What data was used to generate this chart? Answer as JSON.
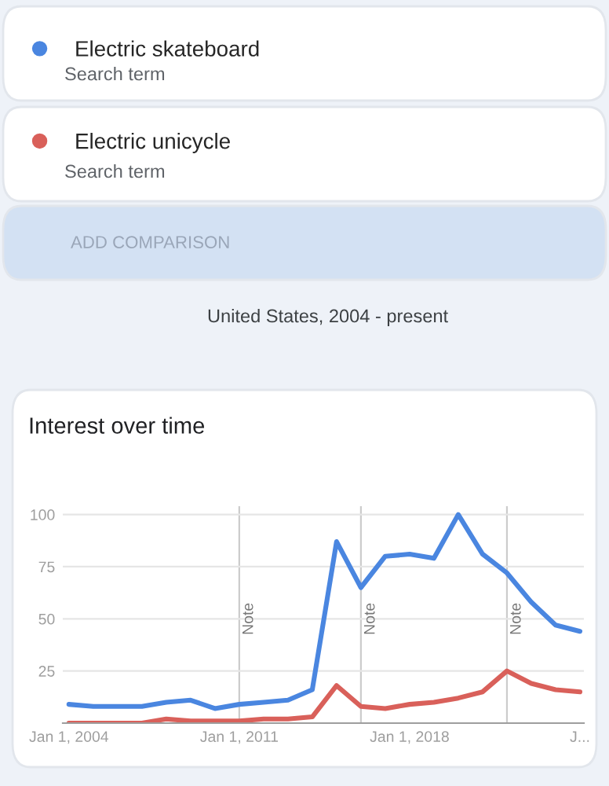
{
  "chart_data": {
    "type": "line",
    "title": "Interest over time",
    "annotations": [
      "Search term",
      "Search term",
      "ADD COMPARISON",
      "United States, 2004 - present"
    ],
    "x": [
      "2004",
      "2005",
      "2006",
      "2007",
      "2008",
      "2009",
      "2010",
      "2011",
      "2012",
      "2013",
      "2014",
      "2015",
      "2016",
      "2017",
      "2018",
      "2019",
      "2020",
      "2021",
      "2022",
      "2023",
      "2024",
      "2025"
    ],
    "series": [
      {
        "name": "Electric skateboard",
        "color": "#4a86e0",
        "values": [
          9,
          8,
          8,
          8,
          10,
          11,
          7,
          9,
          10,
          11,
          16,
          87,
          65,
          80,
          81,
          79,
          100,
          81,
          72,
          58,
          47,
          44
        ]
      },
      {
        "name": "Electric unicycle",
        "color": "#d9605a",
        "values": [
          0,
          0,
          0,
          0,
          2,
          1,
          1,
          1,
          2,
          2,
          3,
          18,
          8,
          7,
          9,
          10,
          12,
          15,
          25,
          19,
          16,
          15
        ]
      }
    ],
    "xlim": [
      "2003-10",
      "2025-03"
    ],
    "xticks": [
      {
        "value": "2004",
        "label": "Jan 1, 2004"
      },
      {
        "value": "2011",
        "label": "Jan 1, 2011"
      },
      {
        "value": "2018",
        "label": "Jan 1, 2018"
      },
      {
        "value": "2025",
        "label": "J..."
      }
    ],
    "ylim": [
      0,
      104
    ],
    "yticks": [
      {
        "value": 0,
        "label": null
      },
      25,
      50,
      75,
      100
    ],
    "ref_lines": [
      {
        "axis": "x",
        "value": "2011",
        "label": "Note",
        "color": "#cccccc"
      },
      {
        "axis": "x",
        "value": "2016",
        "label": "Note",
        "color": "#cccccc"
      },
      {
        "axis": "x",
        "value": "2022",
        "label": "Note",
        "color": "#cccccc"
      }
    ],
    "grid": "y",
    "legend": "top left",
    "marker": "none",
    "line_style": "solid"
  }
}
